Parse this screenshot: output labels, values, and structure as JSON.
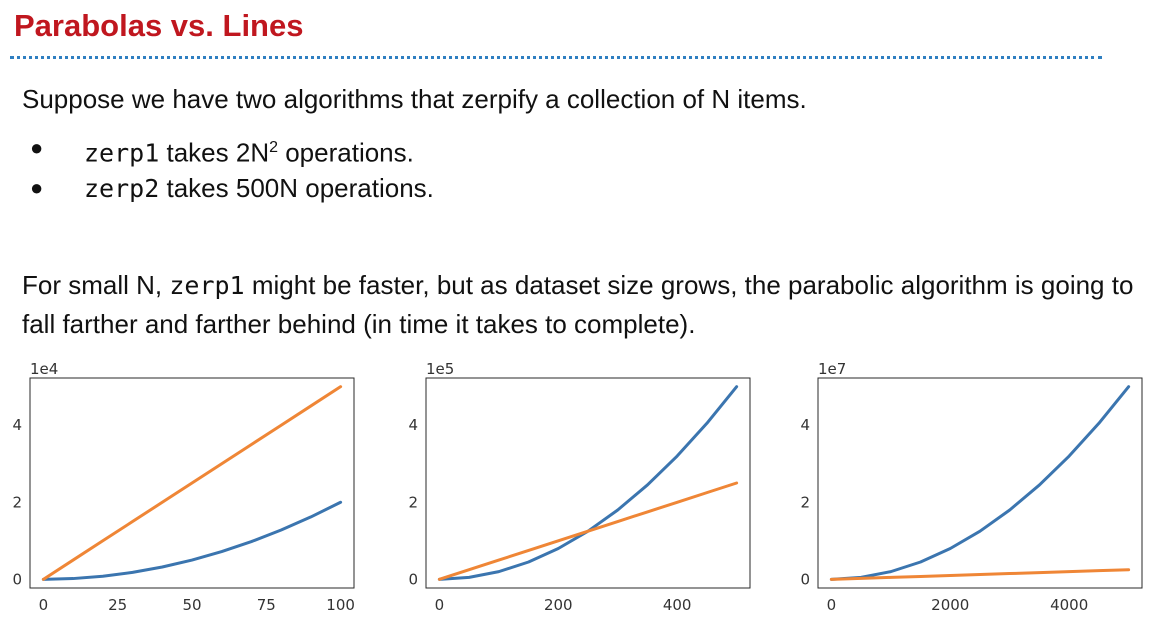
{
  "slide": {
    "title": "Parabolas vs. Lines",
    "intro": "Suppose we have two algorithms that zerpify a collection of N items.",
    "bullets": [
      {
        "code": "zerp1",
        "pre": " takes 2N",
        "sup": "2",
        "post": " operations."
      },
      {
        "code": "zerp2",
        "pre": " takes 500N operations.",
        "sup": "",
        "post": ""
      }
    ],
    "paragraph": {
      "part1": "For small N, ",
      "code": "zerp1",
      "part2": " might be faster, but as dataset size grows, the parabolic algorithm is going to fall farther and farther behind (in time it takes to complete)."
    }
  },
  "colors": {
    "parabola": "#3b75af",
    "line": "#ef8636",
    "title": "#c0171f",
    "rule": "#2f7fc1"
  },
  "chart_data": [
    {
      "type": "line",
      "scale_label": "1e4",
      "xlim": [
        0,
        100
      ],
      "ylim": [
        0,
        5
      ],
      "xticks": [
        0,
        25,
        50,
        75,
        100
      ],
      "yticks": [
        0,
        2,
        4
      ],
      "x": [
        0,
        10,
        20,
        30,
        40,
        50,
        60,
        70,
        80,
        90,
        100
      ],
      "series": [
        {
          "color": "#3b75af",
          "values": [
            0,
            0.02,
            0.08,
            0.18,
            0.32,
            0.5,
            0.72,
            0.98,
            1.28,
            1.62,
            2.0
          ]
        },
        {
          "color": "#ef8636",
          "values": [
            0,
            0.5,
            1.0,
            1.5,
            2.0,
            2.5,
            3.0,
            3.5,
            4.0,
            4.5,
            5.0
          ]
        }
      ]
    },
    {
      "type": "line",
      "scale_label": "1e5",
      "xlim": [
        0,
        500
      ],
      "ylim": [
        0,
        5
      ],
      "xticks": [
        0,
        200,
        400
      ],
      "yticks": [
        0,
        2,
        4
      ],
      "x": [
        0,
        50,
        100,
        150,
        200,
        250,
        300,
        350,
        400,
        450,
        500
      ],
      "series": [
        {
          "color": "#3b75af",
          "values": [
            0,
            0.05,
            0.2,
            0.45,
            0.8,
            1.25,
            1.8,
            2.45,
            3.2,
            4.05,
            5.0
          ]
        },
        {
          "color": "#ef8636",
          "values": [
            0,
            0.25,
            0.5,
            0.75,
            1.0,
            1.25,
            1.5,
            1.75,
            2.0,
            2.25,
            2.5
          ]
        }
      ]
    },
    {
      "type": "line",
      "scale_label": "1e7",
      "xlim": [
        0,
        5000
      ],
      "ylim": [
        0,
        5
      ],
      "xticks": [
        0,
        2000,
        4000
      ],
      "yticks": [
        0,
        2,
        4
      ],
      "x": [
        0,
        500,
        1000,
        1500,
        2000,
        2500,
        3000,
        3500,
        4000,
        4500,
        5000
      ],
      "series": [
        {
          "color": "#3b75af",
          "values": [
            0,
            0.05,
            0.2,
            0.45,
            0.8,
            1.25,
            1.8,
            2.45,
            3.2,
            4.05,
            5.0
          ]
        },
        {
          "color": "#ef8636",
          "values": [
            0,
            0.025,
            0.05,
            0.075,
            0.1,
            0.125,
            0.15,
            0.175,
            0.2,
            0.225,
            0.25
          ]
        }
      ]
    }
  ]
}
